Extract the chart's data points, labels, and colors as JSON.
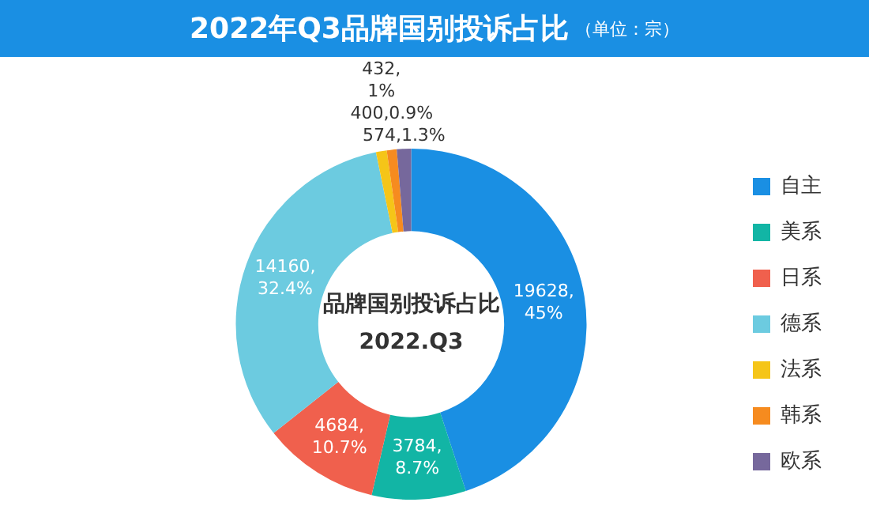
{
  "chart_data": {
    "type": "donut",
    "title": "2022年Q3品牌国别投诉占比",
    "subtitle": "（单位：宗）",
    "annotations": [
      "品牌国别投诉占比",
      "2022.Q3"
    ],
    "categories": [
      "自主",
      "美系",
      "日系",
      "德系",
      "法系",
      "韩系",
      "欧系"
    ],
    "values": [
      19628,
      3784,
      4684,
      14160,
      432,
      400,
      574
    ],
    "colors": [
      "#1a8fe3",
      "#12b5a5",
      "#f0604d",
      "#6ccbe0",
      "#f5c518",
      "#f68b1f",
      "#76689c"
    ],
    "value_labels": [
      "19628,\n45%",
      "3784,\n8.7%",
      "4684,\n10.7%",
      "14160,\n32.4%",
      "432,\n1%",
      "400,0.9%",
      "574,1.3%"
    ],
    "legend": "right"
  }
}
